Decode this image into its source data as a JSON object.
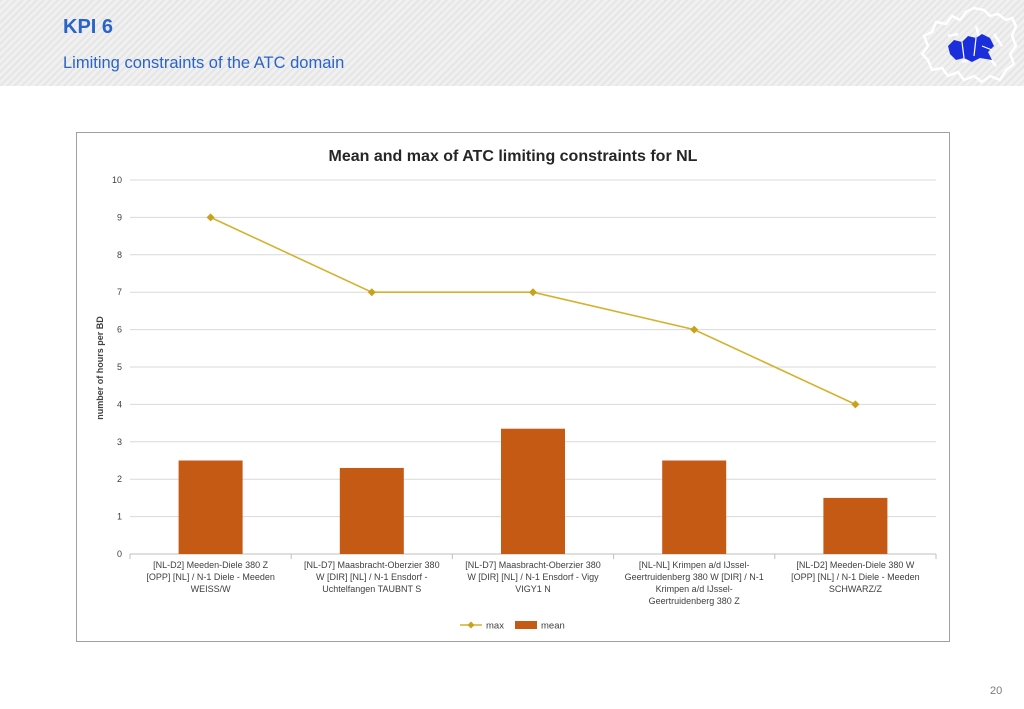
{
  "header": {
    "title": "KPI 6",
    "subtitle": "Limiting constraints of the ATC domain"
  },
  "logo": {
    "icon": "europe-map-icon",
    "color": "#1a2edc"
  },
  "page_number": "20",
  "colors": {
    "max_line": "#d6b12e",
    "max_marker": "#c9a21c",
    "mean_bar": "#c45a14",
    "grid": "#d9d9d9"
  },
  "chart_data": {
    "type": "bar",
    "title": "Mean and max of ATC limiting constraints for NL",
    "xlabel": "",
    "ylabel": "number of hours per BD",
    "ylim": [
      0,
      10
    ],
    "yticks": [
      "0",
      "1",
      "2",
      "3",
      "4",
      "5",
      "6",
      "7",
      "8",
      "9",
      "10"
    ],
    "categories": [
      [
        "[NL-D2] Meeden-Diele  380 Z",
        "[OPP] [NL] / N-1 Diele - Meeden",
        "WEISS/W"
      ],
      [
        "[NL-D7] Maasbracht-Oberzier 380",
        "W [DIR] [NL] / N-1 Ensdorf -",
        "Uchtelfangen TAUBNT S"
      ],
      [
        "[NL-D7] Maasbracht-Oberzier 380",
        "W [DIR] [NL] / N-1 Ensdorf - Vigy",
        "VIGY1 N"
      ],
      [
        "[NL-NL] Krimpen a/d IJssel-",
        "Geertruidenberg 380 W [DIR] / N-1",
        "Krimpen a/d IJssel-",
        "Geertruidenberg 380 Z"
      ],
      [
        "[NL-D2] Meeden-Diele 380 W",
        "[OPP] [NL] / N-1 Diele - Meeden",
        "SCHWARZ/Z"
      ]
    ],
    "series": [
      {
        "name": "max",
        "kind": "line",
        "values": [
          9,
          7,
          7,
          6,
          4
        ]
      },
      {
        "name": "mean",
        "kind": "bar",
        "values": [
          2.5,
          2.3,
          3.35,
          2.5,
          1.5
        ]
      }
    ],
    "legend": [
      "max",
      "mean"
    ],
    "legend_position": "bottom",
    "grid": true
  }
}
